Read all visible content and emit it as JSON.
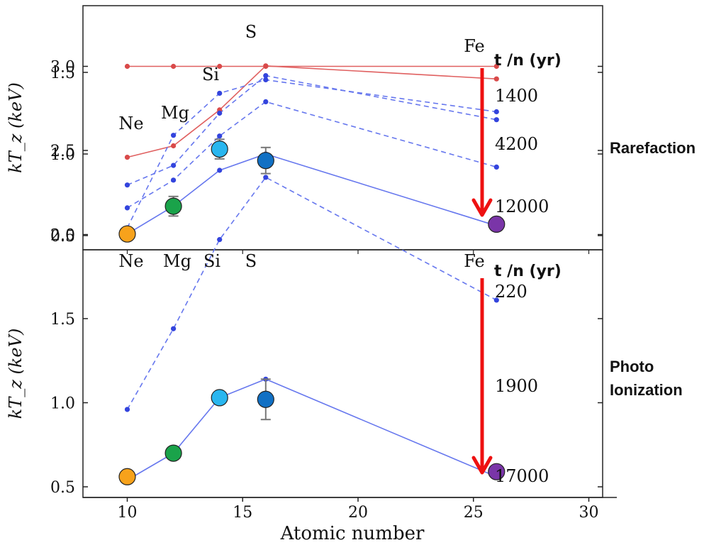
{
  "colors": {
    "red_line": "#e06060",
    "red_dot": "#d94a4a",
    "blue_line": "#6677ee",
    "blue_dot": "#3344dd",
    "arrow": "#ee1111",
    "marker_colors": [
      "#f7a21b",
      "#1aa34a",
      "#29b6ef",
      "#1170c4",
      "#7a35a8"
    ]
  },
  "x_axis": {
    "label": "Atomic number",
    "ticks": [
      "10",
      "15",
      "20",
      "25",
      "30"
    ]
  },
  "panels": [
    {
      "ylabel": "kT_z (keV)",
      "side_label": [
        "Rarefaction"
      ],
      "time_header": "t /n  (yr)",
      "time_labels": [
        "1400",
        "4200",
        "12000"
      ],
      "element_labels": [
        "Ne",
        "Mg",
        "Si",
        "S",
        "Fe"
      ],
      "y_ticks": [
        "0.5",
        "1.0",
        "1.5"
      ]
    },
    {
      "ylabel": "kT_z (keV)",
      "side_label": [
        "Photo",
        "Ionization"
      ],
      "time_header": "t /n  (yr)",
      "time_labels": [
        "220",
        "1900",
        "17000"
      ],
      "element_labels": [
        "Ne",
        "Mg",
        "Si",
        "S",
        "Fe"
      ],
      "y_ticks": [
        "0.5",
        "1.0",
        "1.5",
        "2.0",
        "2.5",
        "3.0"
      ]
    }
  ],
  "chart_data": [
    {
      "type": "line",
      "title": "",
      "xlabel": "Atomic number",
      "ylabel": "kTz (keV)",
      "xlim": [
        8,
        32
      ],
      "ylim": [
        0.35,
        1.78
      ],
      "x": [
        10,
        12,
        14,
        16,
        26
      ],
      "series": [
        {
          "style": "solid-red",
          "values": [
            0.98,
            1.05,
            1.27,
            1.54,
            1.46
          ]
        },
        {
          "style": "dashed-blue",
          "values": [
            0.81,
            0.93,
            1.25,
            1.48,
            1.21
          ]
        },
        {
          "style": "dashed-blue",
          "values": [
            0.67,
            0.84,
            1.11,
            1.32,
            0.92
          ]
        },
        {
          "style": "solid-blue",
          "values": [
            0.51,
            0.68,
            0.9,
            1.0,
            0.56
          ]
        }
      ],
      "observed": [
        {
          "x": 10,
          "y": 0.51,
          "err": 0
        },
        {
          "x": 12,
          "y": 0.68,
          "err": 0.06
        },
        {
          "x": 14,
          "y": 1.03,
          "err": 0.06
        },
        {
          "x": 16,
          "y": 0.96,
          "err": 0.08
        },
        {
          "x": 26,
          "y": 0.57,
          "err": 0
        }
      ]
    },
    {
      "type": "line",
      "title": "",
      "xlabel": "Atomic number",
      "ylabel": "kTz (keV)",
      "xlim": [
        8,
        32
      ],
      "ylim": [
        0.38,
        3.3
      ],
      "x": [
        10,
        12,
        14,
        16,
        26
      ],
      "series": [
        {
          "style": "solid-red",
          "values": [
            3.0,
            3.0,
            3.0,
            3.0,
            3.0
          ]
        },
        {
          "style": "dashed-blue",
          "values": [
            2.04,
            2.59,
            2.84,
            2.92,
            2.73
          ]
        },
        {
          "style": "dashed-blue",
          "values": [
            0.96,
            1.44,
            1.97,
            2.34,
            1.61
          ]
        },
        {
          "style": "solid-blue",
          "values": [
            0.54,
            0.7,
            1.03,
            1.14,
            0.56
          ]
        }
      ],
      "observed": [
        {
          "x": 10,
          "y": 0.56,
          "err": 0
        },
        {
          "x": 12,
          "y": 0.7,
          "err": 0
        },
        {
          "x": 14,
          "y": 1.03,
          "err": 0
        },
        {
          "x": 16,
          "y": 1.02,
          "err": 0.12
        },
        {
          "x": 26,
          "y": 0.59,
          "err": 0
        }
      ]
    }
  ]
}
